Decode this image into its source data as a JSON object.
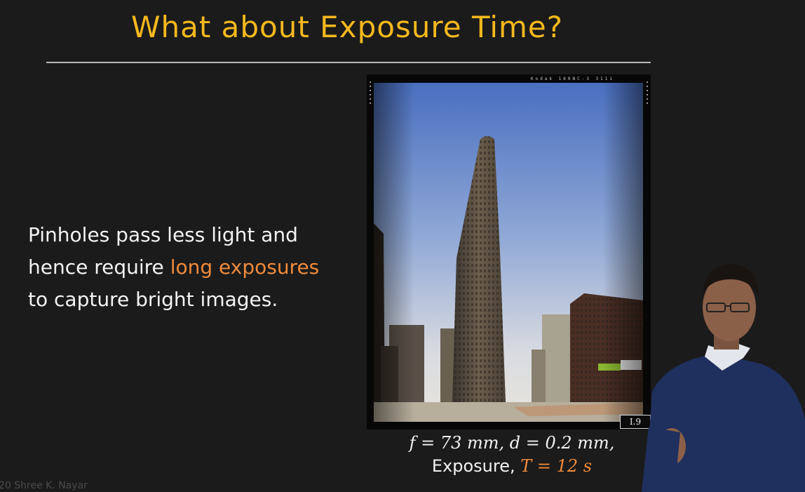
{
  "slide": {
    "title": "What about Exposure Time?",
    "body": {
      "line1": "Pinholes pass less light and",
      "line2_prefix": "hence require ",
      "line2_highlight": "long exposures",
      "line3": "to capture bright images."
    },
    "photo": {
      "film_marking": "Kodak 160NC-3 3111",
      "plate_label": "I.9"
    },
    "caption": {
      "line1": "f = 73 mm, d = 0.2 mm,",
      "exposure_label": "Exposure,",
      "exposure_value": "T = 12 s"
    },
    "copyright": "20 Shree K. Nayar"
  },
  "colors": {
    "background": "#1b1b1b",
    "title": "#f5b81d",
    "highlight": "#f08a3a",
    "text": "#f3f3f3"
  }
}
